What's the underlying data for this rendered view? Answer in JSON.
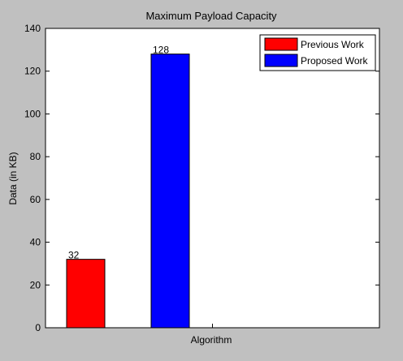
{
  "chart_data": {
    "type": "bar",
    "title": "Maximum Payload Capacity",
    "xlabel": "Algorithm",
    "ylabel": "Data (in KB)",
    "ylim": [
      0,
      140
    ],
    "yticks": [
      0,
      20,
      40,
      60,
      80,
      100,
      120,
      140
    ],
    "grid": false,
    "legend_position": "top-right",
    "series": [
      {
        "name": "Previous Work",
        "color": "#ff0000",
        "values": [
          32
        ]
      },
      {
        "name": "Proposed Work",
        "color": "#0000ff",
        "values": [
          128
        ]
      }
    ],
    "data_labels": [
      "32",
      "128"
    ]
  }
}
